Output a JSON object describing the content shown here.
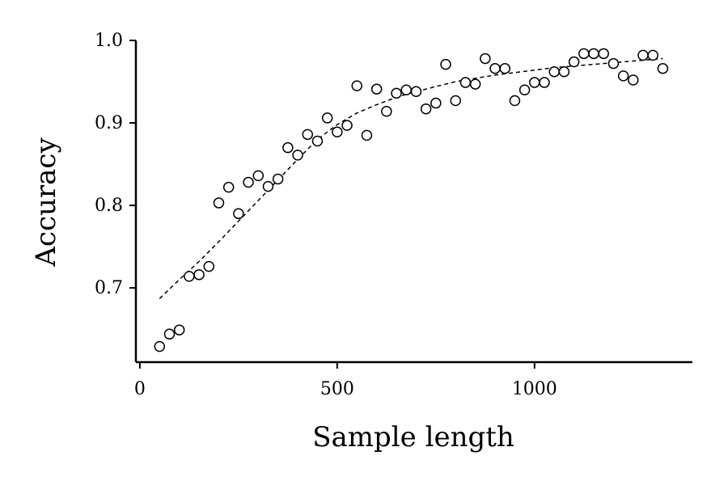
{
  "chart_data": {
    "type": "scatter",
    "title": "",
    "xlabel": "Sample length",
    "ylabel": "Accuracy",
    "xlim": [
      -10,
      1400
    ],
    "ylim": [
      0.61,
      1.0
    ],
    "xticks": [
      0,
      500,
      1000
    ],
    "xtick_labels": [
      "0",
      "500",
      "1000"
    ],
    "yticks": [
      0.7,
      0.8,
      0.9,
      1.0
    ],
    "ytick_labels": [
      "0.7",
      "0.8",
      "0.9",
      "1.0"
    ],
    "grid": false,
    "marker": "open-circle",
    "series": [
      {
        "x": [
          50,
          75,
          100,
          125,
          150,
          175,
          200,
          225,
          250,
          275,
          300,
          325,
          350,
          375,
          400,
          425,
          450,
          475,
          500,
          525,
          550,
          575,
          600,
          625,
          650,
          675,
          700,
          725,
          750,
          775,
          800,
          825,
          850,
          875,
          900,
          925,
          950,
          975,
          1000,
          1025,
          1050,
          1075,
          1100,
          1125,
          1150,
          1175,
          1200,
          1225,
          1250,
          1275,
          1300,
          1325
        ],
        "y": [
          0.629,
          0.644,
          0.649,
          0.714,
          0.716,
          0.726,
          0.803,
          0.822,
          0.79,
          0.828,
          0.836,
          0.823,
          0.832,
          0.87,
          0.861,
          0.886,
          0.878,
          0.906,
          0.889,
          0.897,
          0.945,
          0.885,
          0.941,
          0.914,
          0.936,
          0.94,
          0.938,
          0.917,
          0.924,
          0.971,
          0.927,
          0.949,
          0.947,
          0.978,
          0.966,
          0.966,
          0.927,
          0.94,
          0.949,
          0.949,
          0.962,
          0.962,
          0.974,
          0.984,
          0.984,
          0.984,
          0.972,
          0.957,
          0.952,
          0.982,
          0.982,
          0.966
        ]
      }
    ],
    "fit_line": {
      "style": "dashed",
      "x": [
        50,
        100,
        150,
        200,
        250,
        300,
        350,
        400,
        450,
        500,
        550,
        600,
        650,
        700,
        750,
        800,
        850,
        900,
        950,
        1000,
        1050,
        1100,
        1150,
        1200,
        1250,
        1300,
        1325
      ],
      "y": [
        0.687,
        0.71,
        0.732,
        0.756,
        0.781,
        0.806,
        0.831,
        0.856,
        0.88,
        0.898,
        0.912,
        0.922,
        0.931,
        0.938,
        0.944,
        0.95,
        0.954,
        0.958,
        0.961,
        0.964,
        0.967,
        0.969,
        0.971,
        0.973,
        0.975,
        0.977,
        0.978
      ]
    }
  }
}
